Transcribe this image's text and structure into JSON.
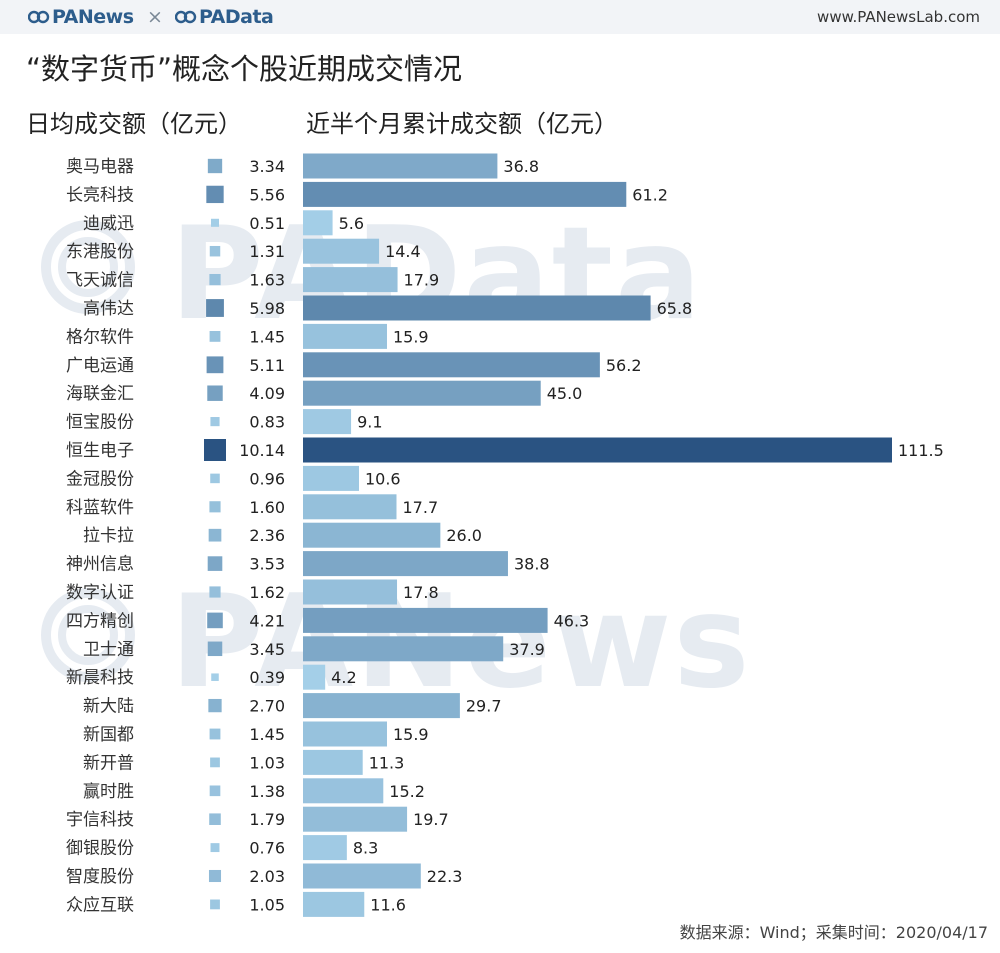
{
  "header": {
    "brand_left": "PANews",
    "separator": "×",
    "brand_right": "PAData",
    "url": "www.PANewsLab.com"
  },
  "title": "“数字货币”概念个股近期成交情况",
  "left_column_title": "日均成交额（亿元）",
  "right_column_title": "近半个月累计成交额（亿元）",
  "watermarks": [
    "PAData",
    "PANews"
  ],
  "source_note": "数据来源：Wind；采集时间：2020/04/17",
  "chart_data": {
    "type": "bar",
    "orientation": "horizontal",
    "categories": [
      "奥马电器",
      "长亮科技",
      "迪威迅",
      "东港股份",
      "飞天诚信",
      "高伟达",
      "格尔软件",
      "广电运通",
      "海联金汇",
      "恒宝股份",
      "恒生电子",
      "金冠股份",
      "科蓝软件",
      "拉卡拉",
      "神州信息",
      "数字认证",
      "四方精创",
      "卫士通",
      "新晨科技",
      "新大陆",
      "新国都",
      "新开普",
      "赢时胜",
      "宇信科技",
      "御银股份",
      "智度股份",
      "众应互联"
    ],
    "series": [
      {
        "name": "日均成交额（亿元）",
        "values": [
          3.34,
          5.56,
          0.51,
          1.31,
          1.63,
          5.98,
          1.45,
          5.11,
          4.09,
          0.83,
          10.14,
          0.96,
          1.6,
          2.36,
          3.53,
          1.62,
          4.21,
          3.45,
          0.39,
          2.7,
          1.45,
          1.03,
          1.38,
          1.79,
          0.76,
          2.03,
          1.05
        ],
        "labels": [
          "3.34",
          "5.56",
          "0.51",
          "1.31",
          "1.63",
          "5.98",
          "1.45",
          "5.11",
          "4.09",
          "0.83",
          "10.14",
          "0.96",
          "1.60",
          "2.36",
          "3.53",
          "1.62",
          "4.21",
          "3.45",
          "0.39",
          "2.70",
          "1.45",
          "1.03",
          "1.38",
          "1.79",
          "0.76",
          "2.03",
          "1.05"
        ]
      },
      {
        "name": "近半个月累计成交额（亿元）",
        "values": [
          36.8,
          61.2,
          5.6,
          14.4,
          17.9,
          65.8,
          15.9,
          56.2,
          45.0,
          9.1,
          111.5,
          10.6,
          17.7,
          26.0,
          38.8,
          17.8,
          46.3,
          37.9,
          4.2,
          29.7,
          15.9,
          11.3,
          15.2,
          19.7,
          8.3,
          22.3,
          11.6
        ],
        "labels": [
          "36.8",
          "61.2",
          "5.6",
          "14.4",
          "17.9",
          "65.8",
          "15.9",
          "56.2",
          "45.0",
          "9.1",
          "111.5",
          "10.6",
          "17.7",
          "26.0",
          "38.8",
          "17.8",
          "46.3",
          "37.9",
          "4.2",
          "29.7",
          "15.9",
          "11.3",
          "15.2",
          "19.7",
          "8.3",
          "22.3",
          "11.6"
        ]
      }
    ],
    "encoding": "left series shown as squares sized by value, right series as horizontal bars; darker blue = larger value",
    "xlim": [
      0,
      111.5
    ],
    "colors": {
      "low": "#a9d4ec",
      "high": "#2a5382"
    },
    "grid": false
  }
}
